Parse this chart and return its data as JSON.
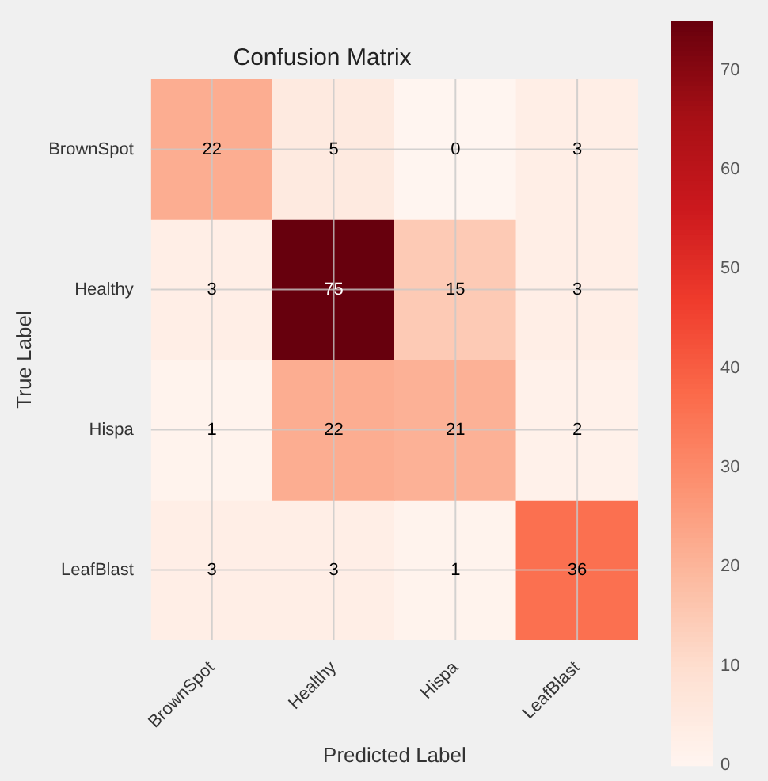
{
  "chart_data": {
    "type": "heatmap",
    "title": "Confusion Matrix",
    "xlabel": "Predicted Label",
    "ylabel": "True Label",
    "categories": [
      "BrownSpot",
      "Healthy",
      "Hispa",
      "LeafBlast"
    ],
    "y_categories": [
      "BrownSpot",
      "Healthy",
      "Hispa",
      "LeafBlast"
    ],
    "cells": [
      [
        22,
        5,
        0,
        3
      ],
      [
        3,
        75,
        15,
        3
      ],
      [
        1,
        22,
        21,
        2
      ],
      [
        3,
        3,
        1,
        36
      ]
    ],
    "clim": [
      0,
      75
    ],
    "cticks": [
      0,
      10,
      20,
      30,
      40,
      50,
      60,
      70
    ],
    "data_labels": true,
    "grid": true
  }
}
